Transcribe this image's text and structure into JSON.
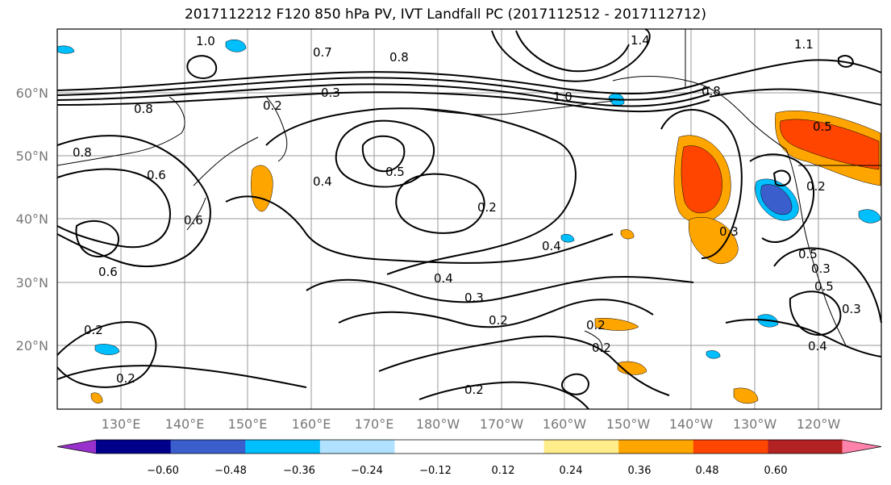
{
  "title": "2017112212 F120 850 hPa PV, IVT Landfall PC (2017112512 - 2017112712)",
  "lat_labels": [
    "60°N",
    "50°N",
    "40°N",
    "30°N",
    "20°N"
  ],
  "lon_labels": [
    "130°E",
    "140°E",
    "150°E",
    "160°E",
    "170°E",
    "180°W",
    "170°W",
    "160°W",
    "150°W",
    "140°W",
    "130°W",
    "120°W"
  ],
  "colorbar": {
    "colors": [
      "#9932CC",
      "#00008B",
      "#3A5FCD",
      "#00BFFF",
      "#B0E2FF",
      "#FFFFFF",
      "#FFFFFF",
      "#FFEC8B",
      "#FFA500",
      "#FF4500",
      "#B22222",
      "#FF82AB"
    ],
    "tick_labels": [
      "−0.60",
      "−0.48",
      "−0.36",
      "−0.24",
      "−0.12",
      "0.12",
      "0.24",
      "0.36",
      "0.48",
      "0.60"
    ]
  },
  "contour_labels": [
    "1.0",
    "0.7",
    "0.8",
    "1.4",
    "1.1",
    "0.8",
    "0.2",
    "0.3",
    "0.8",
    "1.0",
    "0.8",
    "0.6",
    "0.6",
    "0.4",
    "0.5",
    "0.2",
    "0.6",
    "0.3",
    "0.2",
    "0.4",
    "0.4",
    "0.3",
    "0.3",
    "0.2",
    "0.2",
    "0.2",
    "0.2",
    "0.2",
    "0.5",
    "0.5",
    "0.3",
    "0.4",
    "0.2",
    "0.5"
  ]
}
